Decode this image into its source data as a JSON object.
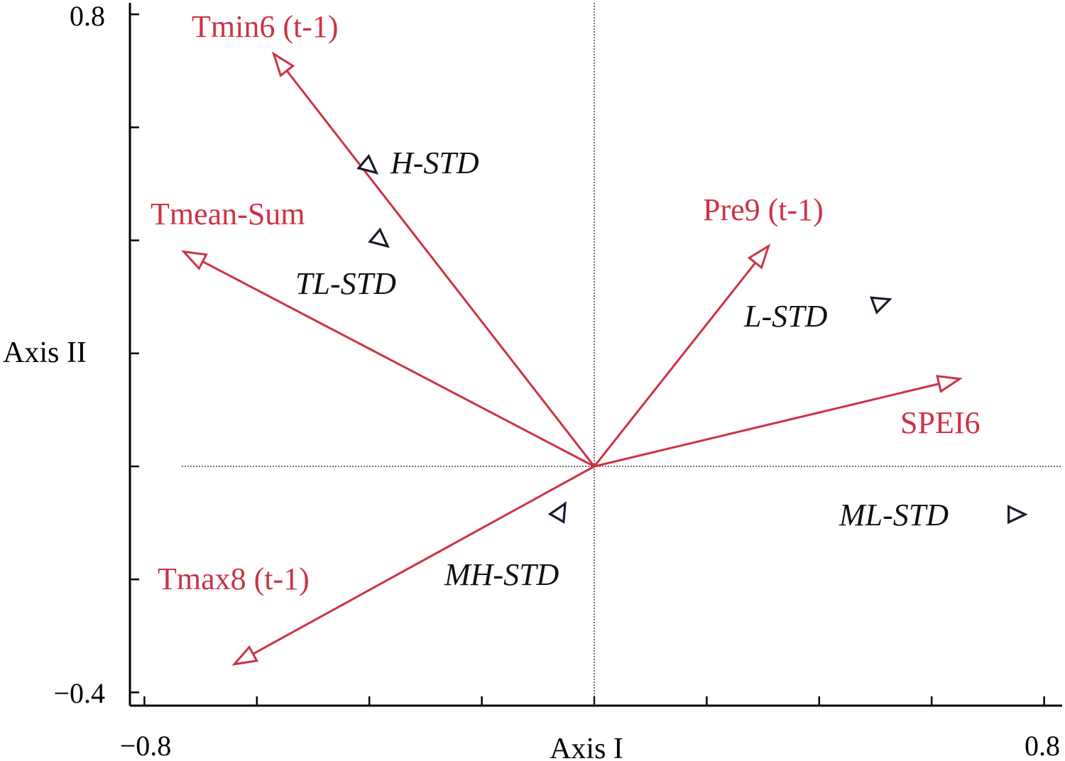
{
  "chart_data": {
    "type": "scatter",
    "subtype": "ordination-biplot",
    "title": "",
    "xlabel": "Axis I",
    "ylabel": "Axis II",
    "xlim": [
      -0.84,
      0.84
    ],
    "ylim": [
      -0.42,
      0.82
    ],
    "x_tick_labels": [
      "−0.8",
      "0.8"
    ],
    "y_tick_labels": [
      "0.8",
      "−0.4"
    ],
    "reference_lines": {
      "x": 0,
      "y": 0,
      "style": "dotted"
    },
    "grid": false,
    "legend": "none",
    "colors": {
      "vectors": "#cc3344",
      "points": "#1a1a2e",
      "axes": "#000000"
    },
    "vectors": [
      {
        "label": "Tmin6 (t-1)",
        "x": -0.57,
        "y": 0.73
      },
      {
        "label": "Tmean-Sum",
        "x": -0.73,
        "y": 0.38
      },
      {
        "label": "Pre9 (t-1)",
        "x": 0.31,
        "y": 0.39
      },
      {
        "label": "SPEI6",
        "x": 0.65,
        "y": 0.155
      },
      {
        "label": "Tmax8 (t-1)",
        "x": -0.64,
        "y": -0.35
      }
    ],
    "points": [
      {
        "label": "H-STD",
        "x": -0.4,
        "y": 0.53
      },
      {
        "label": "TL-STD",
        "x": -0.38,
        "y": 0.4
      },
      {
        "label": "L-STD",
        "x": 0.51,
        "y": 0.29
      },
      {
        "label": "ML-STD",
        "x": 0.75,
        "y": -0.085
      },
      {
        "label": "MH-STD",
        "x": -0.06,
        "y": -0.08
      }
    ]
  }
}
